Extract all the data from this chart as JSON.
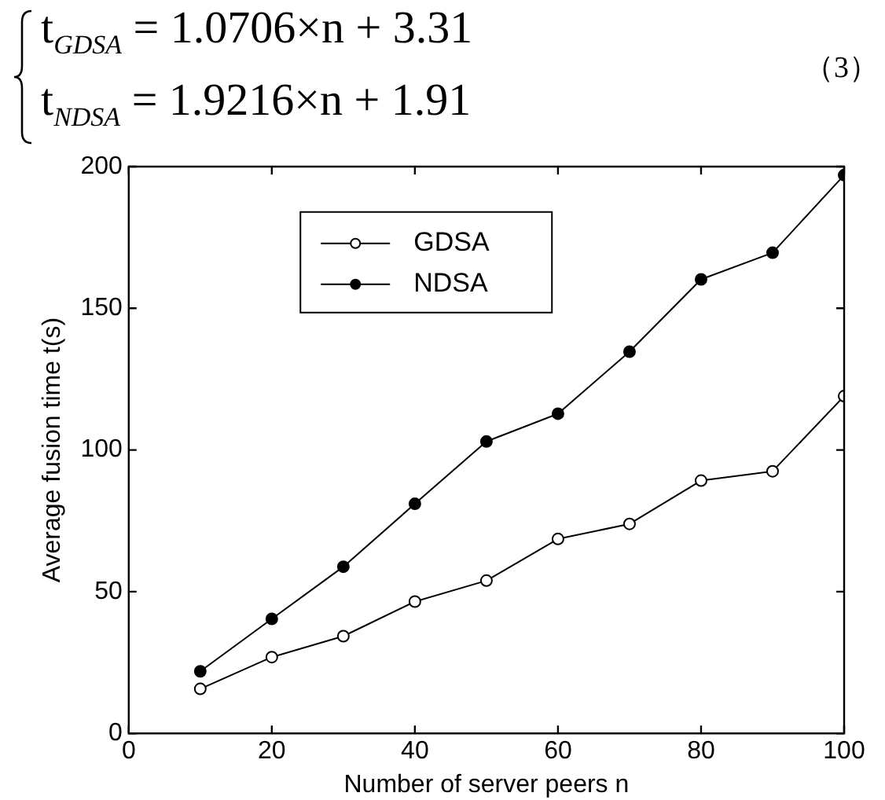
{
  "chart_data": {
    "type": "line",
    "xlabel": "Number of server peers n",
    "ylabel": "Average fusion time t(s)",
    "annotations": [
      "t$_{GDSA}$ = 1.0706×n + 3.31",
      "t$_{NDSA}$ = 1.9216×n + 1.91",
      "（3）"
    ],
    "x": [
      10,
      20,
      30,
      40,
      50,
      60,
      70,
      80,
      90,
      100
    ],
    "series": [
      {
        "name": "GDSA",
        "color": "#000000",
        "marker": "circle",
        "values": [
          15.7,
          26.9,
          34.3,
          46.5,
          53.9,
          68.6,
          73.9,
          89.2,
          92.5,
          119
        ]
      },
      {
        "name": "NDSA",
        "color": "#000000",
        "marker": "circle",
        "values": [
          21.9,
          40.4,
          58.8,
          81,
          103,
          112.8,
          134.7,
          160.2,
          169.6,
          197
        ]
      }
    ],
    "xlim": [
      0,
      100
    ],
    "xticks": [
      0,
      20,
      40,
      60,
      80,
      100
    ],
    "ylim": [
      0,
      200
    ],
    "yticks": [
      0,
      50,
      100,
      150,
      200
    ],
    "grid": false,
    "legend": "top left",
    "line_style": "solid"
  }
}
